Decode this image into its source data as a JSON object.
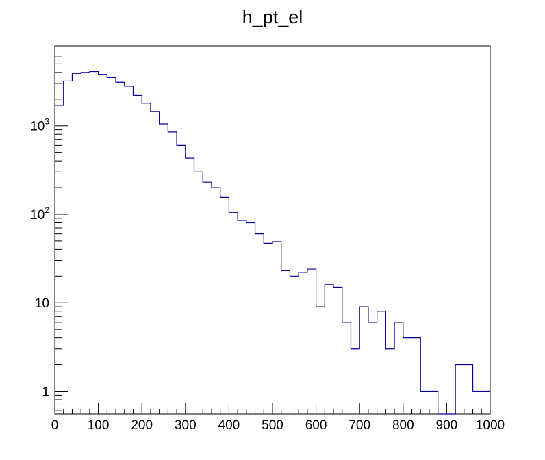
{
  "chart_data": {
    "type": "bar",
    "title": "h_pt_el",
    "xlabel": "",
    "ylabel": "",
    "x_scale": "linear",
    "y_scale": "log",
    "xlim": [
      0,
      1000
    ],
    "ylim": [
      0.55,
      8000
    ],
    "grid": false,
    "legend": "none",
    "line_color": "#000099",
    "bin_edges": [
      0,
      20,
      40,
      60,
      80,
      100,
      120,
      140,
      160,
      180,
      200,
      220,
      240,
      260,
      280,
      300,
      320,
      340,
      360,
      380,
      400,
      420,
      440,
      460,
      480,
      500,
      520,
      540,
      560,
      580,
      600,
      620,
      640,
      660,
      680,
      700,
      720,
      740,
      760,
      780,
      800,
      820,
      840,
      860,
      880,
      900,
      920,
      940,
      960,
      980,
      1000
    ],
    "values": [
      1700,
      3200,
      3900,
      4000,
      4100,
      3800,
      3500,
      3100,
      2800,
      2200,
      1800,
      1450,
      1050,
      850,
      600,
      430,
      300,
      230,
      200,
      155,
      105,
      85,
      80,
      60,
      47,
      49,
      23,
      20,
      22,
      24,
      9,
      16,
      15,
      6,
      3,
      9,
      6,
      8,
      3,
      6,
      4,
      4,
      1,
      1,
      0,
      0,
      2,
      2,
      1,
      1
    ],
    "x_ticks": [
      "0",
      "100",
      "200",
      "300",
      "400",
      "500",
      "600",
      "700",
      "800",
      "900",
      "1000"
    ],
    "y_ticks": [
      {
        "value": 1,
        "base": "1",
        "exp": ""
      },
      {
        "value": 10,
        "base": "10",
        "exp": ""
      },
      {
        "value": 100,
        "base": "10",
        "exp": "2"
      },
      {
        "value": 1000,
        "base": "10",
        "exp": "3"
      }
    ]
  }
}
